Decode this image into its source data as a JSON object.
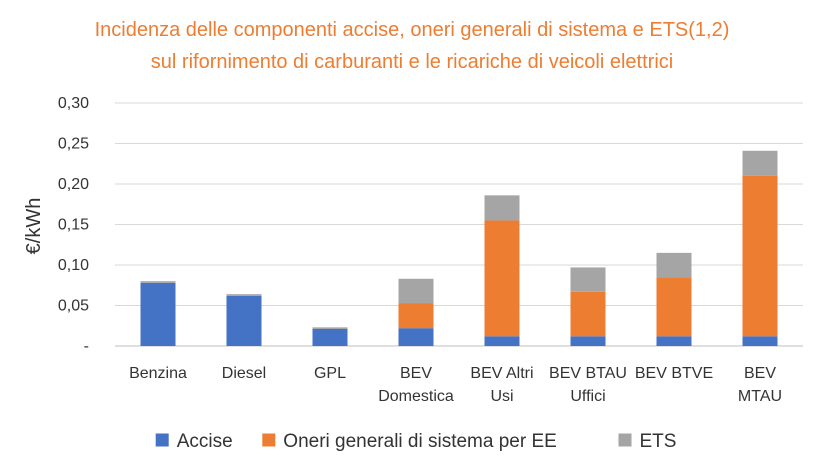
{
  "chart_data": {
    "type": "bar",
    "stacked": true,
    "title": [
      "Incidenza delle componenti accise, oneri generali di sistema e ETS(1,2)",
      "sul rifornimento di carburanti e le ricariche di veicoli elettrici"
    ],
    "ylabel": "€/kWh",
    "ylim": [
      0,
      0.3
    ],
    "yticks": [
      "-",
      "0,05",
      "0,10",
      "0,15",
      "0,20",
      "0,25",
      "0,30"
    ],
    "grid": true,
    "legend_position": "bottom",
    "categories": [
      [
        "Benzina"
      ],
      [
        "Diesel"
      ],
      [
        "GPL"
      ],
      [
        "BEV",
        "Domestica"
      ],
      [
        "BEV Altri",
        "Usi"
      ],
      [
        "BEV BTAU",
        "Uffici"
      ],
      [
        "BEV BTVE"
      ],
      [
        "BEV",
        "MTAU"
      ]
    ],
    "series": [
      {
        "name": "Accise",
        "color": "#4472C4",
        "values": [
          0.078,
          0.062,
          0.021,
          0.022,
          0.012,
          0.012,
          0.012,
          0.012
        ]
      },
      {
        "name": "Oneri generali di sistema per EE",
        "color": "#ED7D31",
        "values": [
          0.0,
          0.0,
          0.0,
          0.031,
          0.143,
          0.055,
          0.073,
          0.198
        ]
      },
      {
        "name": "ETS",
        "color": "#A5A5A5",
        "values": [
          0.002,
          0.002,
          0.002,
          0.03,
          0.031,
          0.03,
          0.03,
          0.031
        ]
      }
    ]
  }
}
